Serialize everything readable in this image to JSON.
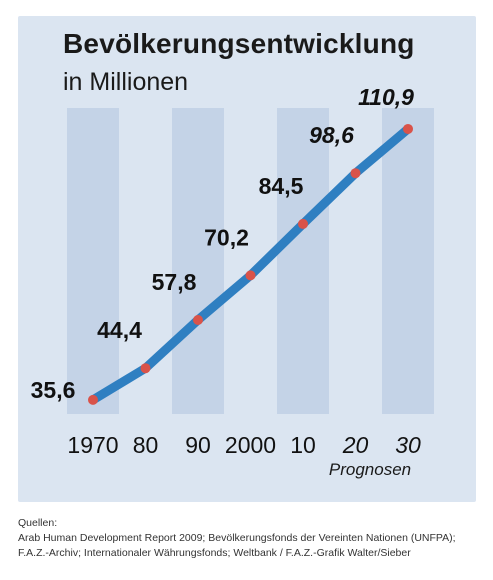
{
  "header": {
    "title": "Bevölkerungsentwicklung",
    "subtitle": "in Millionen"
  },
  "chart_data": {
    "type": "line",
    "title": "Bevölkerungsentwicklung",
    "subtitle": "in Millionen",
    "categories": [
      "1970",
      "80",
      "90",
      "2000",
      "10",
      "20",
      "30"
    ],
    "forecast_categories": [
      "20",
      "30"
    ],
    "forecast_label": "Prognosen",
    "series": [
      {
        "values": [
          35.6,
          44.4,
          57.8,
          70.2,
          84.5,
          98.6,
          110.9
        ],
        "labels": [
          "35,6",
          "44,4",
          "57,8",
          "70,2",
          "84,5",
          "98,6",
          "110,9"
        ]
      }
    ],
    "ylim": [
      30,
      112
    ],
    "grid": false,
    "colors": {
      "line": "#2f7fc1",
      "marker": "#d9534a",
      "columns": "#c4d3e7",
      "background": "#dbe5f1"
    }
  },
  "sources": {
    "heading": "Quellen:",
    "line1": "Arab Human Development Report 2009; Bevölkerungsfonds der Vereinten Nationen (UNFPA);",
    "line2": "F.A.Z.-Archiv; Internationaler Währungsfonds; Weltbank / F.A.Z.-Grafik Walter/Sieber"
  }
}
